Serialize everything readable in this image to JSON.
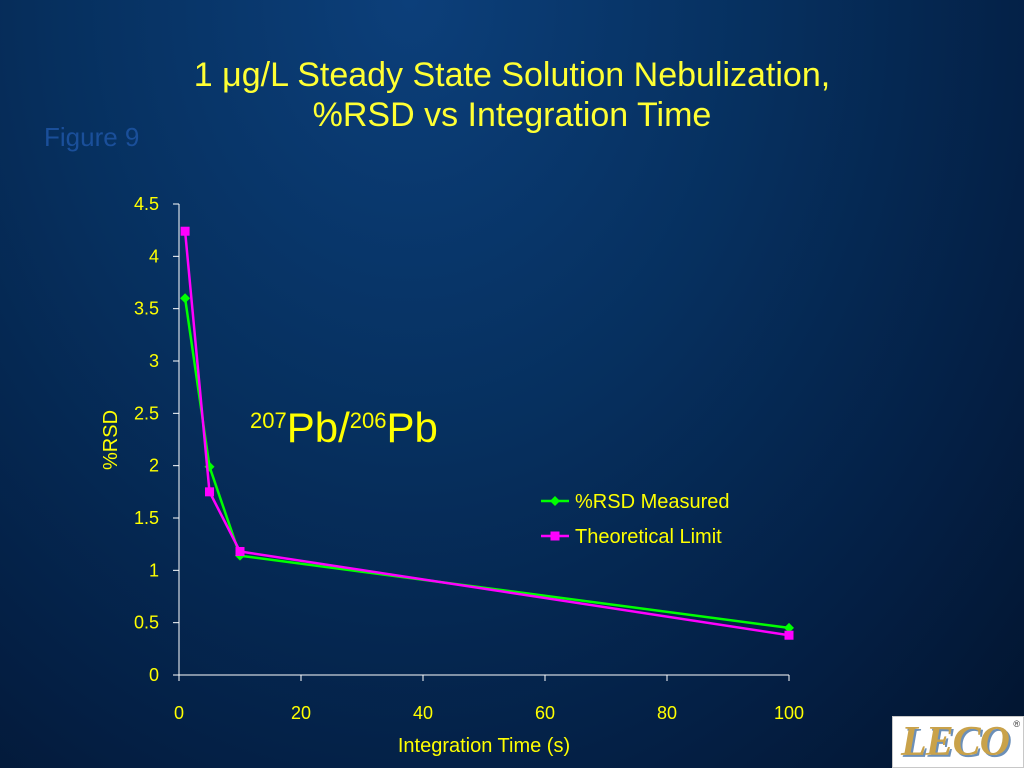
{
  "slide": {
    "title_line1": "1 μg/L Steady State Solution Nebulization,",
    "title_line2": "%RSD vs Integration Time",
    "figure_label": "Figure 9",
    "logo_text": "LECO",
    "logo_reg": "®"
  },
  "colors": {
    "title": "#ffff33",
    "text": "#ffff00",
    "axis": "#ffffff",
    "series_measured": "#00ff00",
    "series_theoretical": "#ff00ff"
  },
  "chart_data": {
    "type": "line",
    "title": "1 μg/L Steady State Solution Nebulization, %RSD vs Integration Time",
    "xlabel": "Integration Time (s)",
    "ylabel": "%RSD",
    "xlim": [
      0,
      100
    ],
    "ylim": [
      0,
      4.5
    ],
    "xticks": [
      0,
      20,
      40,
      60,
      80,
      100
    ],
    "yticks": [
      0,
      0.5,
      1,
      1.5,
      2,
      2.5,
      3,
      3.5,
      4,
      4.5
    ],
    "xtick_labels": [
      "0",
      "20",
      "40",
      "60",
      "80",
      "100"
    ],
    "ytick_labels": [
      "0",
      "0.5",
      "1",
      "1.5",
      "2",
      "2.5",
      "3",
      "3.5",
      "4",
      "4.5"
    ],
    "grid": false,
    "legend_position": "right",
    "annotation": {
      "sup1": "207",
      "text1": "Pb/",
      "sup2": "206",
      "text2": "Pb"
    },
    "series": [
      {
        "name": "%RSD Measured",
        "color": "#00ff00",
        "marker": "diamond",
        "x": [
          1,
          5,
          10,
          100
        ],
        "y": [
          3.6,
          1.99,
          1.14,
          0.45
        ]
      },
      {
        "name": "Theoretical Limit",
        "color": "#ff00ff",
        "marker": "square",
        "x": [
          1,
          5,
          10,
          100
        ],
        "y": [
          4.24,
          1.75,
          1.18,
          0.38
        ]
      }
    ]
  }
}
